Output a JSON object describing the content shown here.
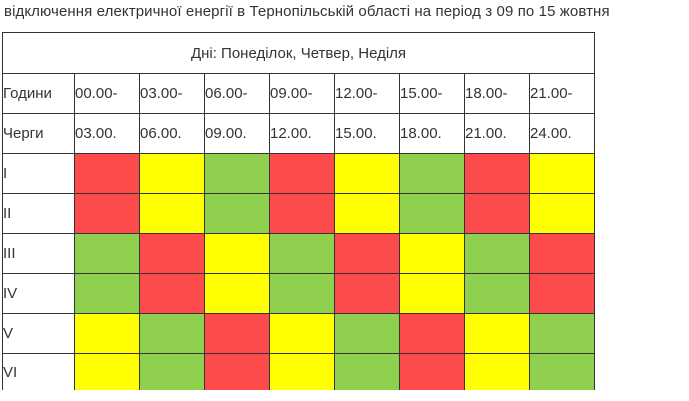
{
  "heading": "відключення електричної енергії  в Тернопільській області на період з 09 по 15 жовтня",
  "table": {
    "days_caption": "Дні: Понеділок, Четвер, Неділя",
    "hours_label": "Години",
    "queues_label": "Черги",
    "time_starts": [
      "00.00-",
      "03.00-",
      "06.00-",
      "09.00-",
      "12.00-",
      "15.00-",
      "18.00-",
      "21.00-"
    ],
    "time_ends": [
      "03.00.",
      "06.00.",
      "09.00.",
      "12.00.",
      "15.00.",
      "18.00.",
      "21.00.",
      "24.00."
    ],
    "rows": [
      {
        "label": "I",
        "slots": [
          "red",
          "yellow",
          "green",
          "red",
          "yellow",
          "green",
          "red",
          "yellow"
        ]
      },
      {
        "label": "II",
        "slots": [
          "red",
          "yellow",
          "green",
          "red",
          "yellow",
          "green",
          "red",
          "yellow"
        ]
      },
      {
        "label": "III",
        "slots": [
          "green",
          "red",
          "yellow",
          "green",
          "red",
          "yellow",
          "green",
          "red"
        ]
      },
      {
        "label": "IV",
        "slots": [
          "green",
          "red",
          "yellow",
          "green",
          "red",
          "yellow",
          "green",
          "red"
        ]
      },
      {
        "label": "V",
        "slots": [
          "yellow",
          "green",
          "red",
          "yellow",
          "green",
          "red",
          "yellow",
          "green"
        ]
      },
      {
        "label": "VI",
        "slots": [
          "yellow",
          "green",
          "red",
          "yellow",
          "green",
          "red",
          "yellow",
          "green"
        ]
      }
    ]
  },
  "colors": {
    "red": "#fd4a4a",
    "yellow": "#ffff00",
    "green": "#8fd14f"
  }
}
